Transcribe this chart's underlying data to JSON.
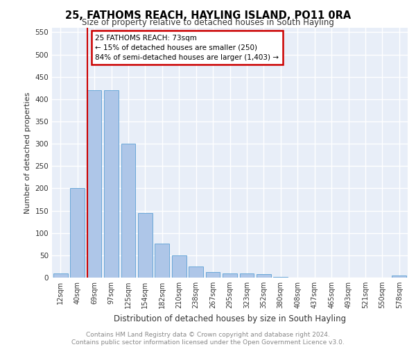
{
  "title": "25, FATHOMS REACH, HAYLING ISLAND, PO11 0RA",
  "subtitle": "Size of property relative to detached houses in South Hayling",
  "xlabel": "Distribution of detached houses by size in South Hayling",
  "ylabel": "Number of detached properties",
  "bar_labels": [
    "12sqm",
    "40sqm",
    "69sqm",
    "97sqm",
    "125sqm",
    "154sqm",
    "182sqm",
    "210sqm",
    "238sqm",
    "267sqm",
    "295sqm",
    "323sqm",
    "352sqm",
    "380sqm",
    "408sqm",
    "437sqm",
    "465sqm",
    "493sqm",
    "521sqm",
    "550sqm",
    "578sqm"
  ],
  "bar_heights": [
    10,
    200,
    420,
    420,
    300,
    145,
    77,
    50,
    25,
    13,
    10,
    10,
    8,
    2,
    0,
    0,
    0,
    0,
    0,
    0,
    5
  ],
  "bar_color": "#aec6e8",
  "bar_edge_color": "#5a9fd4",
  "ylim": [
    0,
    560
  ],
  "yticks": [
    0,
    50,
    100,
    150,
    200,
    250,
    300,
    350,
    400,
    450,
    500,
    550
  ],
  "red_line_x": 2,
  "annotation_line1": "25 FATHOMS REACH: 73sqm",
  "annotation_line2": "← 15% of detached houses are smaller (250)",
  "annotation_line3": "84% of semi-detached houses are larger (1,403) →",
  "red_line_color": "#cc0000",
  "annotation_box_facecolor": "#ffffff",
  "annotation_box_edgecolor": "#cc0000",
  "footer_line1": "Contains HM Land Registry data © Crown copyright and database right 2024.",
  "footer_line2": "Contains public sector information licensed under the Open Government Licence v3.0.",
  "background_color": "#e8eef8",
  "grid_color": "#ffffff",
  "title_fontsize": 10.5,
  "subtitle_fontsize": 8.5,
  "ylabel_fontsize": 8,
  "xlabel_fontsize": 8.5,
  "tick_fontsize": 7.5,
  "xtick_fontsize": 7,
  "footer_fontsize": 6.5,
  "annot_fontsize": 7.5
}
